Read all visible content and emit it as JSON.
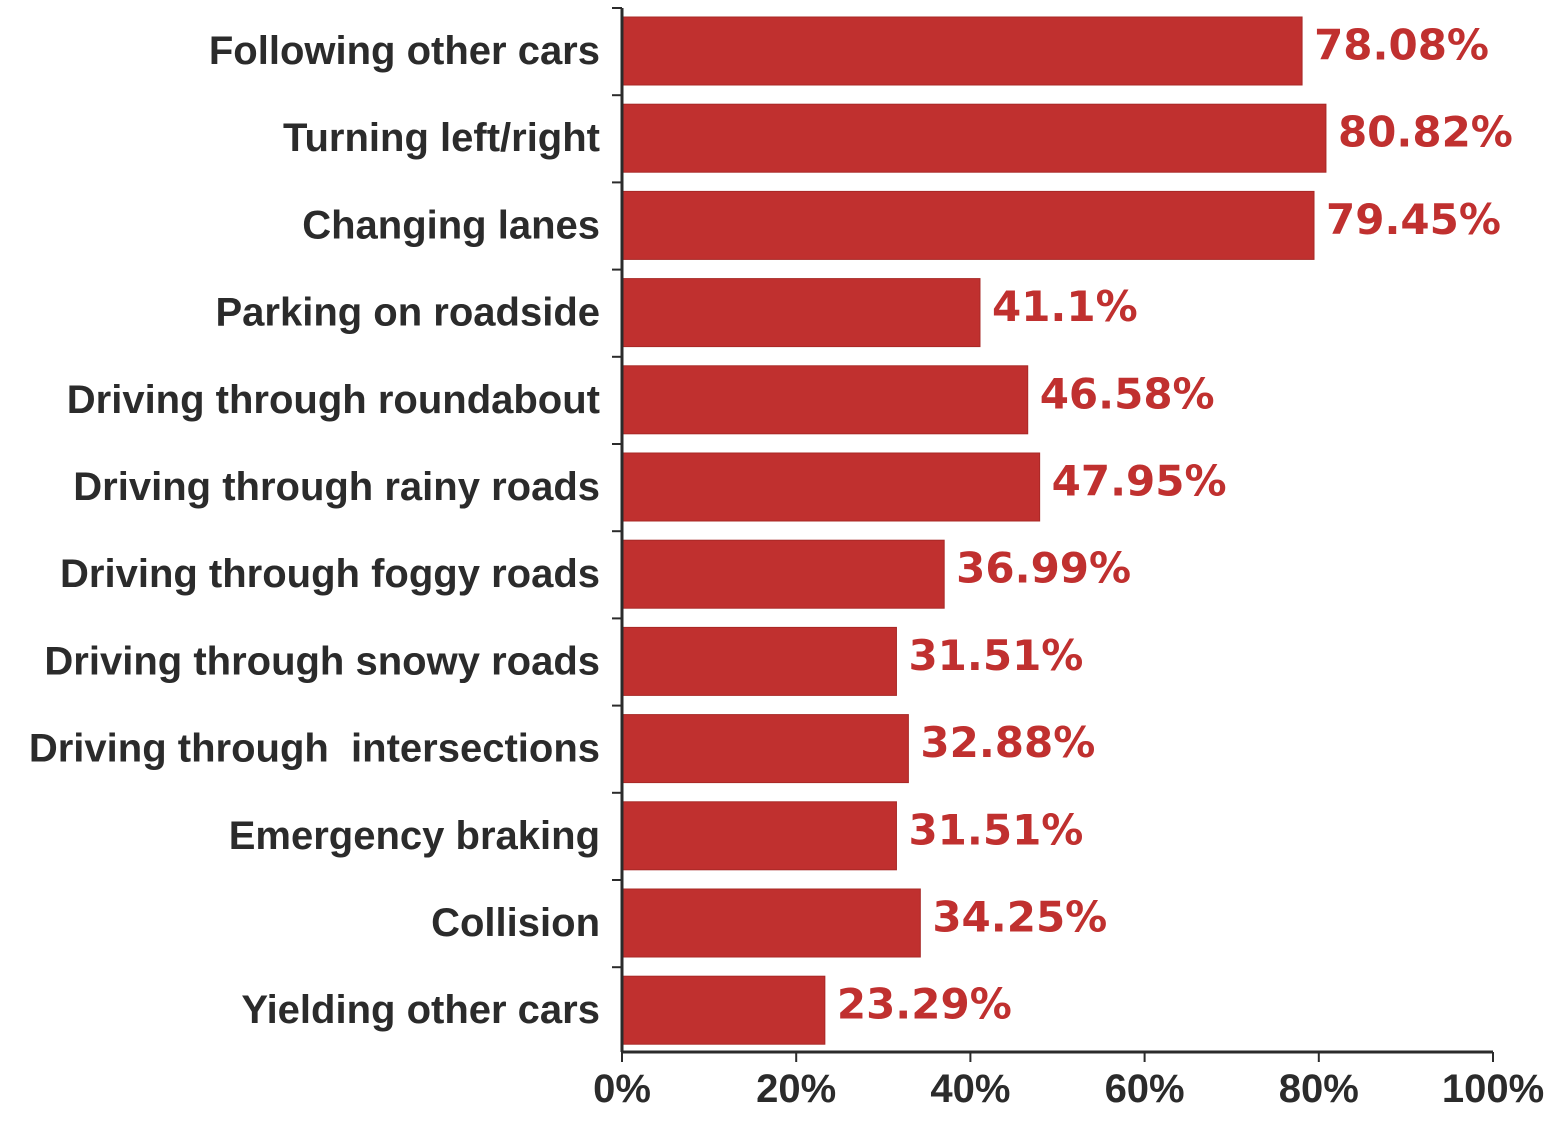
{
  "chart_data": {
    "type": "bar",
    "orientation": "horizontal",
    "categories": [
      "Following other cars",
      "Turning left/right",
      "Changing lanes",
      "Parking on roadside",
      "Driving through roundabout",
      "Driving through rainy roads",
      "Driving through foggy roads",
      "Driving through snowy roads",
      "Driving through  intersections",
      "Emergency braking",
      "Collision",
      "Yielding other cars"
    ],
    "values": [
      78.08,
      80.82,
      79.45,
      41.1,
      46.58,
      47.95,
      36.99,
      31.51,
      32.88,
      31.51,
      34.25,
      23.29
    ],
    "data_labels": [
      "78.08%",
      "80.82%",
      "79.45%",
      "41.1%",
      "46.58%",
      "47.95%",
      "36.99%",
      "31.51%",
      "32.88%",
      "31.51%",
      "34.25%",
      "23.29%"
    ],
    "x_ticks": [
      "0%",
      "20%",
      "40%",
      "60%",
      "80%",
      "100%"
    ],
    "xlim": [
      0,
      100
    ],
    "title": "",
    "xlabel": "",
    "ylabel": "",
    "grid": false,
    "legend": "none",
    "colors": {
      "bar": "#c0302f",
      "bar_edge": "#a82826",
      "data_label": "#c0302f",
      "axis": "#2b2b2b"
    }
  }
}
